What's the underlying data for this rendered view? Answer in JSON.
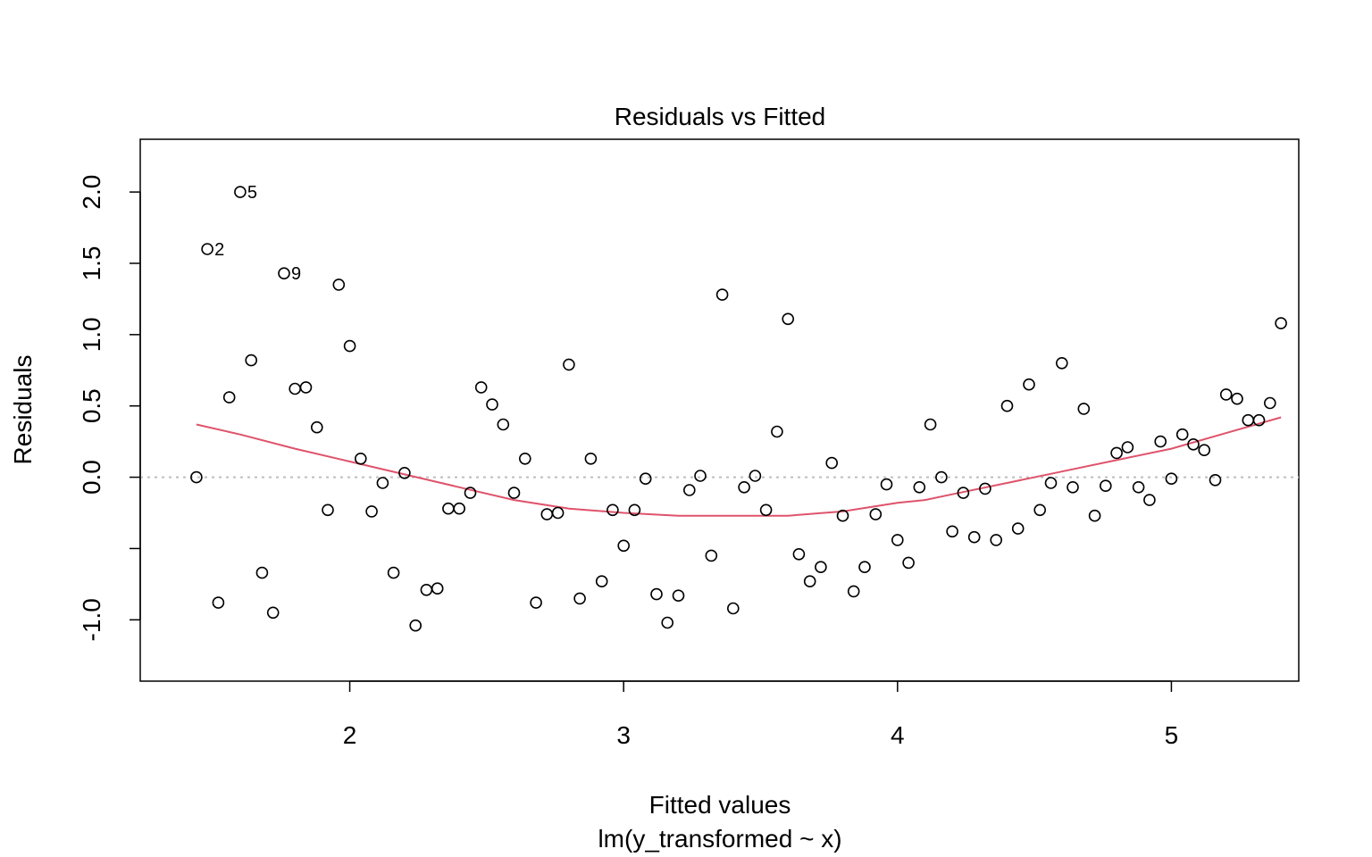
{
  "chart_data": {
    "type": "scatter",
    "title": "Residuals vs Fitted",
    "xlabel": "Fitted values",
    "xlabel_sub": "lm(y_transformed ~ x)",
    "ylabel": "Residuals",
    "xlim": [
      1.235,
      5.465
    ],
    "ylim": [
      -1.43,
      2.37
    ],
    "xticks": [
      2,
      3,
      4,
      5
    ],
    "yticks": [
      -1.0,
      -0.5,
      0.0,
      0.5,
      1.0,
      1.5,
      2.0
    ],
    "ytick_labels": [
      "-1.0",
      "",
      "0.0",
      "0.5",
      "1.0",
      "1.5",
      "2.0"
    ],
    "reference_line": 0,
    "colors": {
      "points": "#000000",
      "smooth": "#df536b",
      "reference": "#bebebe",
      "axes": "#000000"
    },
    "points": [
      [
        1.44,
        0.0
      ],
      [
        1.48,
        1.6
      ],
      [
        1.52,
        -0.88
      ],
      [
        1.56,
        0.56
      ],
      [
        1.6,
        2.0
      ],
      [
        1.64,
        0.82
      ],
      [
        1.68,
        -0.67
      ],
      [
        1.72,
        -0.95
      ],
      [
        1.76,
        1.43
      ],
      [
        1.8,
        0.62
      ],
      [
        1.84,
        0.63
      ],
      [
        1.88,
        0.35
      ],
      [
        1.92,
        -0.23
      ],
      [
        1.96,
        1.35
      ],
      [
        2.0,
        0.92
      ],
      [
        2.04,
        0.13
      ],
      [
        2.08,
        -0.24
      ],
      [
        2.12,
        -0.04
      ],
      [
        2.16,
        -0.67
      ],
      [
        2.2,
        0.03
      ],
      [
        2.24,
        -1.04
      ],
      [
        2.28,
        -0.79
      ],
      [
        2.32,
        -0.78
      ],
      [
        2.36,
        -0.22
      ],
      [
        2.4,
        -0.22
      ],
      [
        2.44,
        -0.11
      ],
      [
        2.48,
        0.63
      ],
      [
        2.52,
        0.51
      ],
      [
        2.56,
        0.37
      ],
      [
        2.6,
        -0.11
      ],
      [
        2.64,
        0.13
      ],
      [
        2.68,
        -0.88
      ],
      [
        2.72,
        -0.26
      ],
      [
        2.76,
        -0.25
      ],
      [
        2.8,
        0.79
      ],
      [
        2.84,
        -0.85
      ],
      [
        2.88,
        0.13
      ],
      [
        2.92,
        -0.73
      ],
      [
        2.96,
        -0.23
      ],
      [
        3.0,
        -0.48
      ],
      [
        3.04,
        -0.23
      ],
      [
        3.08,
        -0.01
      ],
      [
        3.12,
        -0.82
      ],
      [
        3.16,
        -1.02
      ],
      [
        3.2,
        -0.83
      ],
      [
        3.24,
        -0.09
      ],
      [
        3.28,
        0.01
      ],
      [
        3.32,
        -0.55
      ],
      [
        3.36,
        1.28
      ],
      [
        3.4,
        -0.92
      ],
      [
        3.44,
        -0.07
      ],
      [
        3.48,
        0.01
      ],
      [
        3.52,
        -0.23
      ],
      [
        3.56,
        0.32
      ],
      [
        3.6,
        1.11
      ],
      [
        3.64,
        -0.54
      ],
      [
        3.68,
        -0.73
      ],
      [
        3.72,
        -0.63
      ],
      [
        3.76,
        0.1
      ],
      [
        3.8,
        -0.27
      ],
      [
        3.84,
        -0.8
      ],
      [
        3.88,
        -0.63
      ],
      [
        3.92,
        -0.26
      ],
      [
        3.96,
        -0.05
      ],
      [
        4.0,
        -0.44
      ],
      [
        4.04,
        -0.6
      ],
      [
        4.08,
        -0.07
      ],
      [
        4.12,
        0.37
      ],
      [
        4.16,
        0.0
      ],
      [
        4.2,
        -0.38
      ],
      [
        4.24,
        -0.11
      ],
      [
        4.28,
        -0.42
      ],
      [
        4.32,
        -0.08
      ],
      [
        4.36,
        -0.44
      ],
      [
        4.4,
        0.5
      ],
      [
        4.44,
        -0.36
      ],
      [
        4.48,
        0.65
      ],
      [
        4.52,
        -0.23
      ],
      [
        4.56,
        -0.04
      ],
      [
        4.6,
        0.8
      ],
      [
        4.64,
        -0.07
      ],
      [
        4.68,
        0.48
      ],
      [
        4.72,
        -0.27
      ],
      [
        4.76,
        -0.06
      ],
      [
        4.8,
        0.17
      ],
      [
        4.84,
        0.21
      ],
      [
        4.88,
        -0.07
      ],
      [
        4.92,
        -0.16
      ],
      [
        4.96,
        0.25
      ],
      [
        5.0,
        -0.01
      ],
      [
        5.04,
        0.3
      ],
      [
        5.08,
        0.23
      ],
      [
        5.12,
        0.19
      ],
      [
        5.16,
        -0.02
      ],
      [
        5.2,
        0.58
      ],
      [
        5.24,
        0.55
      ],
      [
        5.28,
        0.4
      ],
      [
        5.32,
        0.4
      ],
      [
        5.36,
        0.52
      ],
      [
        5.4,
        1.08
      ]
    ],
    "labeled_points": [
      {
        "label": "5",
        "x": 1.6,
        "y": 2.0
      },
      {
        "label": "2",
        "x": 1.48,
        "y": 1.6
      },
      {
        "label": "9",
        "x": 1.76,
        "y": 1.43
      }
    ],
    "smooth": [
      [
        1.44,
        0.37
      ],
      [
        1.6,
        0.3
      ],
      [
        1.8,
        0.2
      ],
      [
        2.0,
        0.11
      ],
      [
        2.2,
        0.02
      ],
      [
        2.4,
        -0.07
      ],
      [
        2.6,
        -0.16
      ],
      [
        2.8,
        -0.22
      ],
      [
        3.0,
        -0.25
      ],
      [
        3.2,
        -0.27
      ],
      [
        3.4,
        -0.27
      ],
      [
        3.6,
        -0.27
      ],
      [
        3.8,
        -0.24
      ],
      [
        4.0,
        -0.18
      ],
      [
        4.1,
        -0.16
      ],
      [
        4.2,
        -0.12
      ],
      [
        4.4,
        -0.04
      ],
      [
        4.6,
        0.04
      ],
      [
        4.8,
        0.12
      ],
      [
        5.0,
        0.2
      ],
      [
        5.2,
        0.31
      ],
      [
        5.4,
        0.42
      ]
    ]
  }
}
